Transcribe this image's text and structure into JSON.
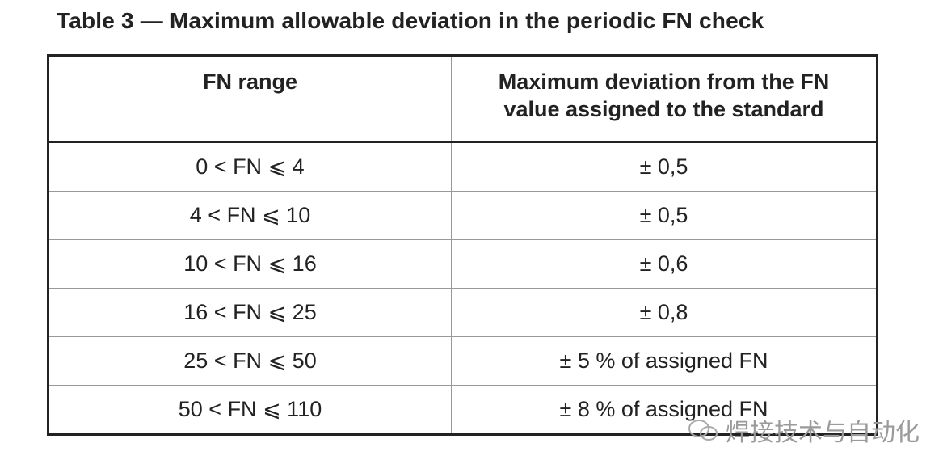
{
  "title": "Table 3 — Maximum allowable deviation in the periodic FN check",
  "table": {
    "header": [
      [
        "FN range"
      ],
      [
        "Maximum deviation from the FN",
        "value assigned to the standard"
      ]
    ],
    "rows": [
      [
        "0 < FN ⩽ 4",
        "± 0,5"
      ],
      [
        "4 < FN ⩽ 10",
        "± 0,5"
      ],
      [
        "10 < FN ⩽ 16",
        "± 0,6"
      ],
      [
        "16 < FN ⩽ 25",
        "± 0,8"
      ],
      [
        "25 < FN ⩽ 50",
        "± 5 % of assigned FN"
      ],
      [
        "50 < FN ⩽ 110",
        "± 8 % of assigned FN"
      ]
    ]
  },
  "watermark": "焊接技术与自动化"
}
